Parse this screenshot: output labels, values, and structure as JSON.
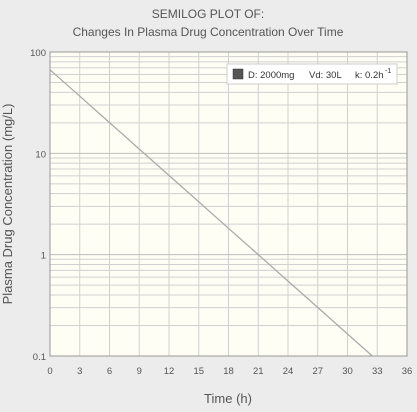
{
  "chart_data": {
    "type": "line",
    "title": "SEMILOG PLOT OF:",
    "subtitle": "Changes In Plasma Drug Concentration Over Time",
    "xlabel": "Time (h)",
    "ylabel": "Plasma Drug Concentration (mg/L)",
    "xlim": [
      0,
      36
    ],
    "ylim": [
      0.1,
      100
    ],
    "yscale": "log",
    "grid": true,
    "x_ticks": [
      "0",
      "3",
      "6",
      "9",
      "12",
      "15",
      "18",
      "21",
      "24",
      "27",
      "30",
      "33",
      "36"
    ],
    "y_ticks": [
      "0.1",
      "1",
      "10",
      "100"
    ],
    "legend": {
      "placement": "top-right",
      "parts": [
        {
          "text": "D: 2000mg"
        },
        {
          "text": "Vd: 30L"
        },
        {
          "text": "k: 0.2h"
        },
        {
          "text": "-1"
        }
      ]
    },
    "series": [
      {
        "dose_mg": 2000,
        "vd_L": 30,
        "k_per_h": 0.2,
        "x": [
          0,
          3,
          6,
          9,
          12,
          15,
          18,
          21,
          24,
          27,
          30,
          32.5
        ],
        "y": [
          66.7,
          36.6,
          20.1,
          11.0,
          6.05,
          3.32,
          1.82,
          1.0,
          0.549,
          0.301,
          0.165,
          0.1
        ]
      }
    ],
    "colors": {
      "background": "#ececec",
      "plot_area": "#fffef5",
      "grid": "#d0d0d0",
      "line": "#aaaaaa",
      "axis": "#999999",
      "text": "#555555"
    }
  }
}
